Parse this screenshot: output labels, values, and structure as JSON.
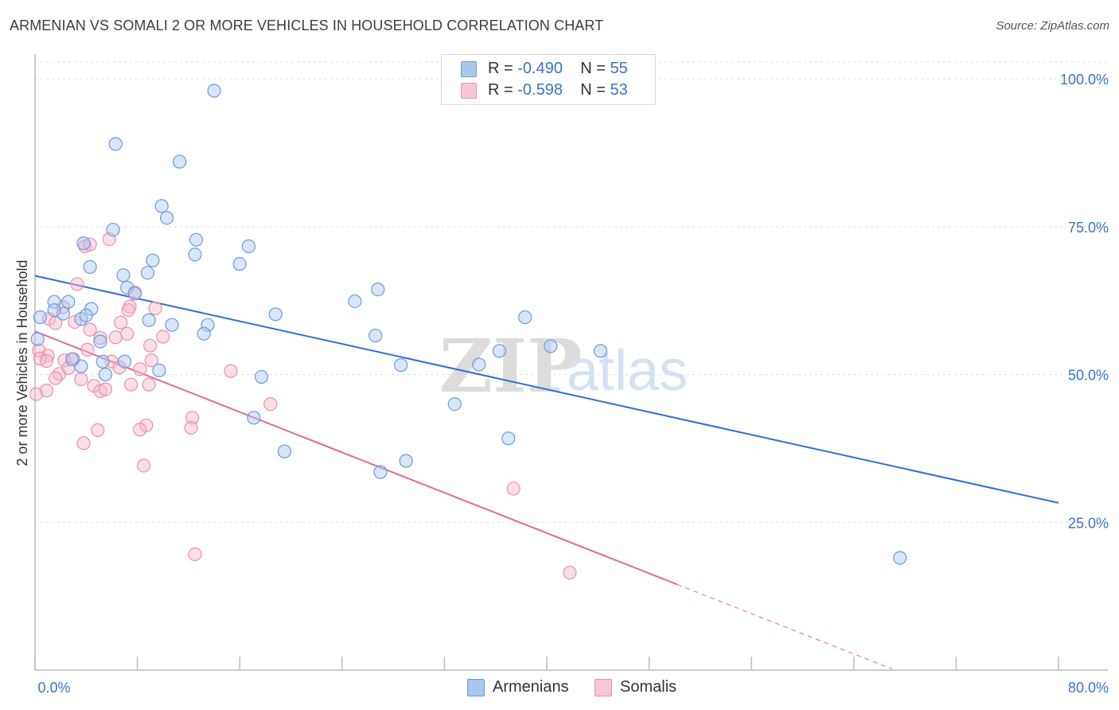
{
  "header": {
    "title": "ARMENIAN VS SOMALI 2 OR MORE VEHICLES IN HOUSEHOLD CORRELATION CHART",
    "source": "Source: ZipAtlas.com"
  },
  "watermark": {
    "part1": "ZIP",
    "part2": "atlas"
  },
  "legend": {
    "armenians": {
      "r_label": "R = ",
      "r_value": "-0.490",
      "n_label": "N = ",
      "n_value": "55"
    },
    "somalis": {
      "r_label": "R = ",
      "r_value": "-0.598",
      "n_label": "N = ",
      "n_value": "53"
    }
  },
  "colors": {
    "armenians_fill": "#a9c7ee",
    "armenians_stroke": "#6a9be0",
    "armenians_line": "#2f6fcf",
    "somalis_fill": "#f7b9cc",
    "somalis_stroke": "#ec8fae",
    "somalis_line": "#e06b93",
    "tick_label": "#3a74c9",
    "grid": "#dddddd"
  },
  "chart_data": {
    "type": "scatter",
    "title": "ARMENIAN VS SOMALI 2 OR MORE VEHICLES IN HOUSEHOLD CORRELATION CHART",
    "xlabel": "",
    "ylabel": "2 or more Vehicles in Household",
    "xlim": [
      0,
      80
    ],
    "ylim": [
      0,
      105
    ],
    "x_tick_labels": [
      "0.0%",
      "80.0%"
    ],
    "y_ticks": [
      25,
      50,
      75,
      100
    ],
    "y_tick_labels": [
      "25.0%",
      "50.0%",
      "75.0%",
      "100.0%"
    ],
    "grid": true,
    "series": [
      {
        "name": "Armenians",
        "points": [
          [
            14.0,
            98
          ],
          [
            6.3,
            89
          ],
          [
            11.3,
            86
          ],
          [
            9.9,
            78.5
          ],
          [
            10.3,
            76.5
          ],
          [
            6.1,
            74.5
          ],
          [
            3.8,
            72.2
          ],
          [
            12.6,
            72.8
          ],
          [
            16.7,
            71.7
          ],
          [
            4.3,
            68.2
          ],
          [
            12.5,
            70.3
          ],
          [
            9.2,
            69.3
          ],
          [
            16.0,
            68.7
          ],
          [
            6.9,
            66.8
          ],
          [
            8.8,
            67.2
          ],
          [
            7.2,
            64.7
          ],
          [
            7.8,
            63.7
          ],
          [
            26.8,
            64.4
          ],
          [
            2.6,
            62.3
          ],
          [
            4.4,
            61.1
          ],
          [
            1.5,
            62.3
          ],
          [
            2.2,
            60.3
          ],
          [
            1.5,
            60.9
          ],
          [
            3.6,
            59.4
          ],
          [
            18.8,
            60.2
          ],
          [
            25.0,
            62.4
          ],
          [
            0.4,
            59.7
          ],
          [
            8.9,
            59.2
          ],
          [
            10.7,
            58.4
          ],
          [
            13.5,
            58.4
          ],
          [
            13.2,
            56.9
          ],
          [
            26.6,
            56.6
          ],
          [
            38.3,
            59.7
          ],
          [
            40.3,
            54.8
          ],
          [
            44.2,
            54.0
          ],
          [
            36.3,
            54.0
          ],
          [
            5.1,
            55.6
          ],
          [
            5.3,
            52.2
          ],
          [
            7.0,
            52.2
          ],
          [
            28.6,
            51.6
          ],
          [
            34.7,
            51.7
          ],
          [
            3.6,
            51.4
          ],
          [
            9.7,
            50.7
          ],
          [
            5.5,
            50.0
          ],
          [
            17.7,
            49.6
          ],
          [
            0.2,
            56.0
          ],
          [
            32.8,
            45.0
          ],
          [
            17.1,
            42.7
          ],
          [
            37.0,
            39.2
          ],
          [
            19.5,
            37.0
          ],
          [
            29.0,
            35.4
          ],
          [
            27.0,
            33.5
          ],
          [
            67.6,
            19.0
          ],
          [
            2.9,
            52.6
          ],
          [
            4.0,
            60.0
          ]
        ],
        "trend": {
          "x_start": 0.0,
          "y_start": 66.7,
          "x_end": 80.0,
          "y_end": 28.3
        }
      },
      {
        "name": "Somalis",
        "points": [
          [
            3.9,
            71.7
          ],
          [
            4.3,
            72.0
          ],
          [
            5.8,
            72.9
          ],
          [
            3.3,
            65.3
          ],
          [
            7.8,
            63.9
          ],
          [
            7.4,
            61.5
          ],
          [
            9.4,
            61.2
          ],
          [
            2.2,
            61.4
          ],
          [
            7.3,
            60.9
          ],
          [
            1.1,
            59.4
          ],
          [
            1.6,
            58.7
          ],
          [
            3.1,
            58.9
          ],
          [
            4.3,
            57.6
          ],
          [
            7.2,
            56.9
          ],
          [
            5.1,
            56.2
          ],
          [
            6.3,
            56.3
          ],
          [
            10.0,
            56.4
          ],
          [
            0.3,
            54.1
          ],
          [
            1.0,
            53.2
          ],
          [
            2.3,
            52.4
          ],
          [
            3.0,
            52.6
          ],
          [
            6.0,
            52.2
          ],
          [
            9.1,
            52.4
          ],
          [
            0.4,
            52.7
          ],
          [
            0.9,
            52.3
          ],
          [
            4.1,
            54.2
          ],
          [
            6.6,
            51.2
          ],
          [
            8.2,
            50.9
          ],
          [
            15.3,
            50.6
          ],
          [
            1.9,
            50.1
          ],
          [
            1.6,
            49.4
          ],
          [
            3.6,
            49.2
          ],
          [
            8.9,
            48.3
          ],
          [
            4.6,
            48.1
          ],
          [
            7.5,
            48.3
          ],
          [
            5.1,
            47.2
          ],
          [
            5.5,
            47.5
          ],
          [
            0.1,
            46.7
          ],
          [
            0.9,
            47.3
          ],
          [
            18.4,
            45.0
          ],
          [
            12.3,
            42.7
          ],
          [
            8.7,
            41.4
          ],
          [
            8.2,
            40.7
          ],
          [
            12.2,
            41.0
          ],
          [
            4.9,
            40.6
          ],
          [
            3.8,
            38.4
          ],
          [
            8.5,
            34.6
          ],
          [
            37.4,
            30.7
          ],
          [
            12.5,
            19.6
          ],
          [
            41.8,
            16.5
          ],
          [
            6.7,
            58.8
          ],
          [
            9.0,
            54.9
          ],
          [
            2.6,
            51.1
          ]
        ],
        "trend": {
          "x_start": 0.0,
          "y_start": 57.3,
          "x_end": 50.2,
          "y_end": 14.5
        },
        "trend_dashed": {
          "x_start": 50.2,
          "y_start": 14.5,
          "x_end": 67.0,
          "y_end": 0.2
        }
      }
    ],
    "legend_position": "top-center, bottom"
  },
  "bottom_legend": {
    "armenians": "Armenians",
    "somalis": "Somalis"
  }
}
